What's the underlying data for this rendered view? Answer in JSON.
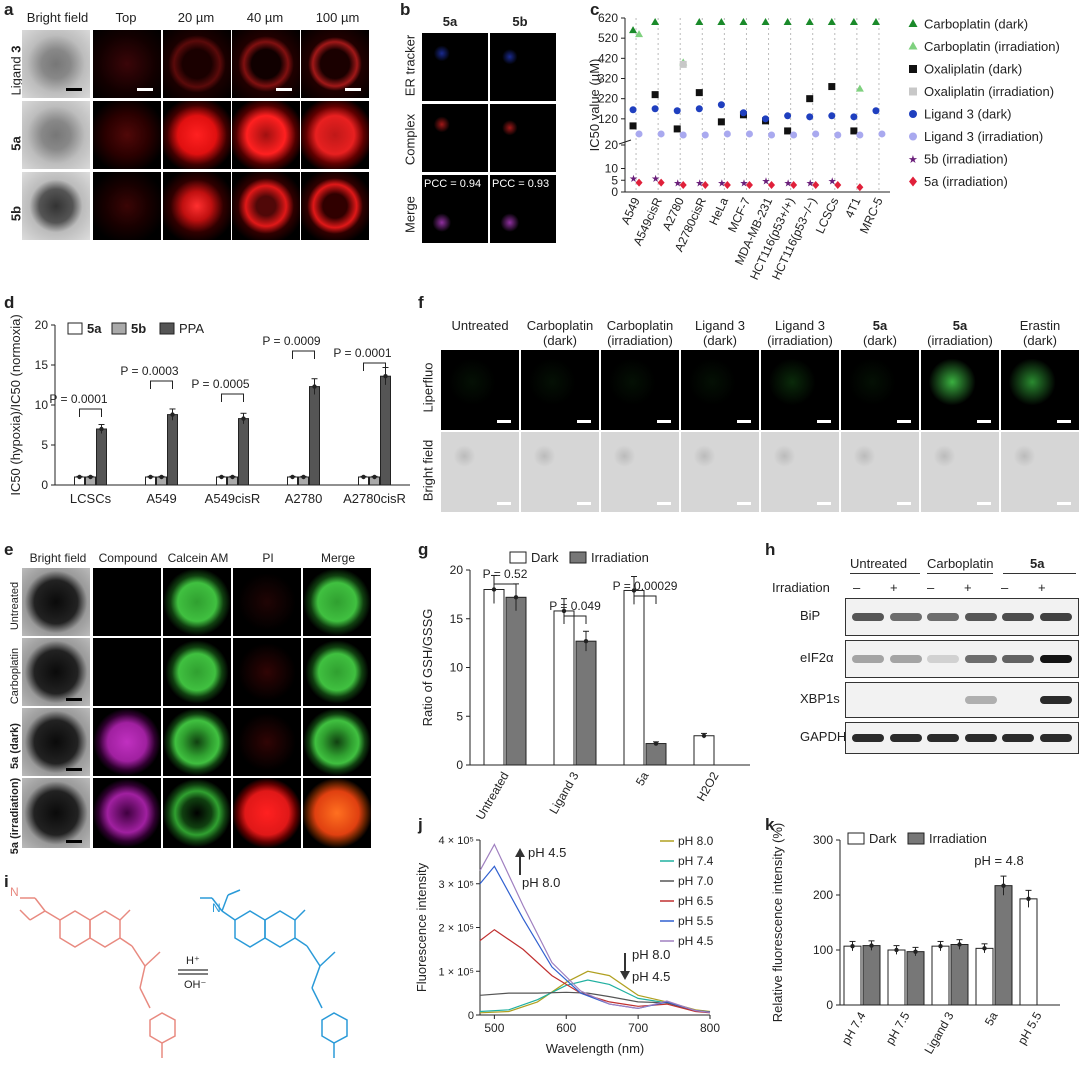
{
  "panels": {
    "a": "a",
    "b": "b",
    "c": "c",
    "d": "d",
    "e": "e",
    "f": "f",
    "g": "g",
    "h": "h",
    "i": "i",
    "j": "j",
    "k": "k"
  },
  "panel_a": {
    "columns": [
      "Bright field",
      "Top",
      "20 µm",
      "40 µm",
      "100 µm"
    ],
    "row_labels": [
      {
        "text": "Ligand ",
        "bold": "3"
      },
      {
        "text": "",
        "bold": "5a"
      },
      {
        "text": "",
        "bold": "5b"
      }
    ]
  },
  "panel_b": {
    "columns": [
      "5a",
      "5b"
    ],
    "rows": [
      "ER tracker",
      "Complex",
      "Merge"
    ],
    "pcc": [
      "PCC = 0.94",
      "PCC = 0.93"
    ]
  },
  "panel_e": {
    "columns": [
      "Bright field",
      "Compound",
      "Calcein AM",
      "PI",
      "Merge"
    ],
    "rows": [
      "Untreated",
      "Carboplatin",
      "5a (dark)",
      "5a (irradiation)"
    ]
  },
  "panel_f": {
    "columns": [
      {
        "l1": "Untreated",
        "l2": ""
      },
      {
        "l1": "Carboplatin",
        "l2": "(dark)"
      },
      {
        "l1": "Carboplatin",
        "l2": "(irradiation)"
      },
      {
        "l1": "Ligand 3",
        "l2": "(dark)"
      },
      {
        "l1": "Ligand 3",
        "l2": "(irradiation)"
      },
      {
        "l1": "5a",
        "l2": "(dark)"
      },
      {
        "l1": "5a",
        "l2": "(irradiation)"
      },
      {
        "l1": "Erastin",
        "l2": "(dark)"
      }
    ],
    "rows": [
      "Liperfluo",
      "Bright field"
    ]
  },
  "panel_h": {
    "groups": [
      "Untreated",
      "Carboplatin",
      "5a"
    ],
    "irr_label": "Irradiation",
    "irr_signs": [
      "–",
      "+",
      "–",
      "+",
      "–",
      "+"
    ],
    "bands": [
      "BiP",
      "eIF2α",
      "XBP1s",
      "GAPDH"
    ]
  },
  "panel_i": {
    "h_plus": "H⁺",
    "oh_minus": "OH⁻"
  },
  "chart_data": [
    {
      "panel": "c",
      "type": "scatter",
      "ylabel": "IC50 value (µM)",
      "categories": [
        "A549",
        "A549cisR",
        "A2780",
        "A2780cisR",
        "HeLa",
        "MCF-7",
        "MDA-MB-231",
        "HCT116(p53+/+)",
        "HCT116(p53−/−)",
        "LCSCs",
        "4T1",
        "MRC-5"
      ],
      "yticks": [
        0,
        5,
        10,
        20,
        120,
        220,
        320,
        420,
        520,
        620
      ],
      "series": [
        {
          "name": "Carboplatin (dark)",
          "color": "#1a8a2a",
          "marker": "triangle",
          "values": [
            560,
            600,
            null,
            600,
            600,
            600,
            600,
            600,
            600,
            600,
            600,
            600
          ]
        },
        {
          "name": "Carboplatin (irradiation)",
          "color": "#7fd17f",
          "marker": "triangle",
          "values": [
            540,
            null,
            400,
            null,
            null,
            null,
            null,
            null,
            null,
            null,
            270,
            null
          ]
        },
        {
          "name": "Oxaliplatin (dark)",
          "color": "#111111",
          "marker": "square",
          "values": [
            85,
            240,
            70,
            250,
            105,
            140,
            110,
            60,
            220,
            280,
            60,
            null
          ]
        },
        {
          "name": "Oxaliplatin (irradiation)",
          "color": "#c8c8c8",
          "marker": "square",
          "values": [
            null,
            null,
            390,
            null,
            null,
            null,
            null,
            null,
            null,
            null,
            null,
            null
          ]
        },
        {
          "name": "Ligand 3 (dark)",
          "color": "#1f3fbf",
          "marker": "circle",
          "values": [
            165,
            170,
            160,
            170,
            190,
            150,
            120,
            135,
            130,
            135,
            130,
            160
          ]
        },
        {
          "name": "Ligand 3 (irradiation)",
          "color": "#a9a9ef",
          "marker": "circle",
          "values": [
            45,
            45,
            40,
            40,
            45,
            45,
            40,
            40,
            45,
            40,
            40,
            45
          ]
        },
        {
          "name": "5b (irradiation)",
          "color": "#6a1f7a",
          "marker": "star",
          "values": [
            6,
            6,
            4,
            4,
            4,
            4,
            5,
            4,
            4,
            5,
            null,
            null
          ]
        },
        {
          "name": "5a (irradiation)",
          "color": "#e0203a",
          "marker": "diamond",
          "values": [
            4,
            4,
            3,
            3,
            3,
            3,
            3,
            3,
            3,
            3,
            2,
            null
          ]
        }
      ],
      "legend": [
        "Carboplatin (dark)",
        "Carboplatin (irradiation)",
        "Oxaliplatin (dark)",
        "Oxaliplatin (irradiation)",
        "Ligand 3 (dark)",
        "Ligand 3 (irradiation)",
        "5b (irradiation)",
        "5a (irradiation)"
      ]
    },
    {
      "panel": "d",
      "type": "bar",
      "ylabel": "IC50 (hypoxia)/IC50 (normoxia)",
      "ylim": [
        0,
        20
      ],
      "yticks": [
        0,
        5,
        10,
        15,
        20
      ],
      "categories": [
        "LCSCs",
        "A549",
        "A549cisR",
        "A2780",
        "A2780cisR"
      ],
      "series": [
        {
          "name": "5a",
          "color": "#ffffff",
          "values": [
            1,
            1,
            1,
            1,
            1
          ]
        },
        {
          "name": "5b",
          "color": "#aaaaaa",
          "values": [
            1,
            1,
            1,
            1,
            1
          ]
        },
        {
          "name": "PPA",
          "color": "#555555",
          "values": [
            7.0,
            8.8,
            8.3,
            12.3,
            13.6
          ]
        }
      ],
      "pvalues": [
        "P = 0.0001",
        "P = 0.0003",
        "P = 0.0005",
        "P = 0.0009",
        "P = 0.0001"
      ]
    },
    {
      "panel": "g",
      "type": "bar",
      "ylabel": "Ratio of GSH/GSSG",
      "ylim": [
        0,
        20
      ],
      "yticks": [
        0,
        5,
        10,
        15,
        20
      ],
      "categories": [
        "Untreated",
        "Ligand 3",
        "5a",
        "H2O2"
      ],
      "series": [
        {
          "name": "Dark",
          "color": "#ffffff",
          "values": [
            18.0,
            15.8,
            17.9,
            3.0
          ]
        },
        {
          "name": "Irradiation",
          "color": "#777777",
          "values": [
            17.2,
            12.7,
            2.2,
            null
          ]
        }
      ],
      "pvalues": [
        "P = 0.52",
        "P = 0.049",
        "P = 0.00029"
      ]
    },
    {
      "panel": "j",
      "type": "line",
      "xlabel": "Wavelength (nm)",
      "ylabel": "Fluorescence intensity",
      "xlim": [
        480,
        800
      ],
      "xticks": [
        500,
        600,
        700,
        800
      ],
      "ylim": [
        0,
        400000
      ],
      "yticks": [
        0,
        100000,
        200000,
        300000,
        400000
      ],
      "ytick_labels": [
        "0",
        "1 × 10⁵",
        "2 × 10⁵",
        "3 × 10⁵",
        "4 × 10⁵"
      ],
      "annotations": [
        "pH 4.5",
        "pH 8.0",
        "pH 8.0",
        "pH 4.5"
      ],
      "series": [
        {
          "name": "pH 8.0",
          "color": "#b0a020",
          "x": [
            480,
            520,
            560,
            600,
            630,
            660,
            700,
            740,
            780,
            800
          ],
          "y": [
            5000,
            8000,
            30000,
            75000,
            100000,
            90000,
            45000,
            30000,
            12000,
            8000
          ]
        },
        {
          "name": "pH 7.4",
          "color": "#20b0a0",
          "x": [
            480,
            520,
            560,
            600,
            630,
            660,
            700,
            740,
            780,
            800
          ],
          "y": [
            8000,
            12000,
            35000,
            68000,
            80000,
            70000,
            38000,
            28000,
            10000,
            7000
          ]
        },
        {
          "name": "pH 7.0",
          "color": "#555555",
          "x": [
            480,
            520,
            560,
            600,
            630,
            660,
            700,
            740,
            780,
            800
          ],
          "y": [
            45000,
            50000,
            50000,
            52000,
            50000,
            42000,
            30000,
            28000,
            10000,
            7000
          ]
        },
        {
          "name": "pH 6.5",
          "color": "#c03030",
          "x": [
            480,
            500,
            540,
            580,
            620,
            660,
            700,
            740,
            780,
            800
          ],
          "y": [
            170000,
            195000,
            150000,
            90000,
            50000,
            30000,
            20000,
            25000,
            8000,
            5000
          ]
        },
        {
          "name": "pH 5.5",
          "color": "#3060d0",
          "x": [
            480,
            500,
            540,
            580,
            620,
            660,
            700,
            740,
            780,
            800
          ],
          "y": [
            300000,
            340000,
            220000,
            110000,
            50000,
            25000,
            15000,
            30000,
            10000,
            6000
          ]
        },
        {
          "name": "pH 4.5",
          "color": "#a080c0",
          "x": [
            480,
            500,
            540,
            580,
            620,
            660,
            700,
            740,
            780,
            800
          ],
          "y": [
            330000,
            390000,
            250000,
            120000,
            55000,
            25000,
            15000,
            32000,
            10000,
            6000
          ]
        }
      ]
    },
    {
      "panel": "k",
      "type": "bar",
      "ylabel": "Relative fluorescence intensity (%)",
      "ylim": [
        0,
        300
      ],
      "yticks": [
        0,
        100,
        200,
        300
      ],
      "categories": [
        "pH 7.4",
        "pH 7.5",
        "Ligand 3",
        "5a",
        "pH 5.5"
      ],
      "series": [
        {
          "name": "Dark",
          "color": "#ffffff",
          "values": [
            107,
            100,
            107,
            103,
            193
          ]
        },
        {
          "name": "Irradiation",
          "color": "#777777",
          "values": [
            108,
            97,
            110,
            217,
            null
          ]
        }
      ],
      "annotation": "pH = 4.8"
    }
  ]
}
